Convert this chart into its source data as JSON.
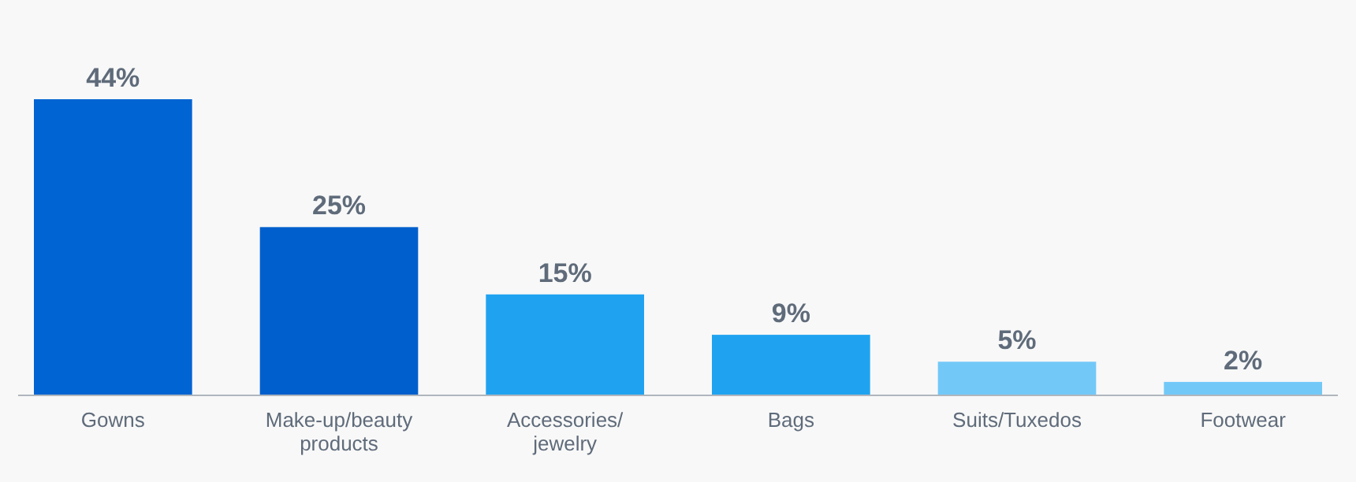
{
  "chart_data": {
    "type": "bar",
    "categories": [
      "Gowns",
      "Make-up/beauty products",
      "Accessories/ jewelry",
      "Bags",
      "Suits/Tuxedos",
      "Footwear"
    ],
    "values": [
      44,
      25,
      15,
      9,
      5,
      2
    ],
    "colors": [
      "#0064d2",
      "#005fcc",
      "#1fa3f0",
      "#1fa3f0",
      "#72c9f8",
      "#72c9f8"
    ],
    "value_labels": [
      "44%",
      "25%",
      "15%",
      "9%",
      "5%",
      "2%"
    ]
  }
}
